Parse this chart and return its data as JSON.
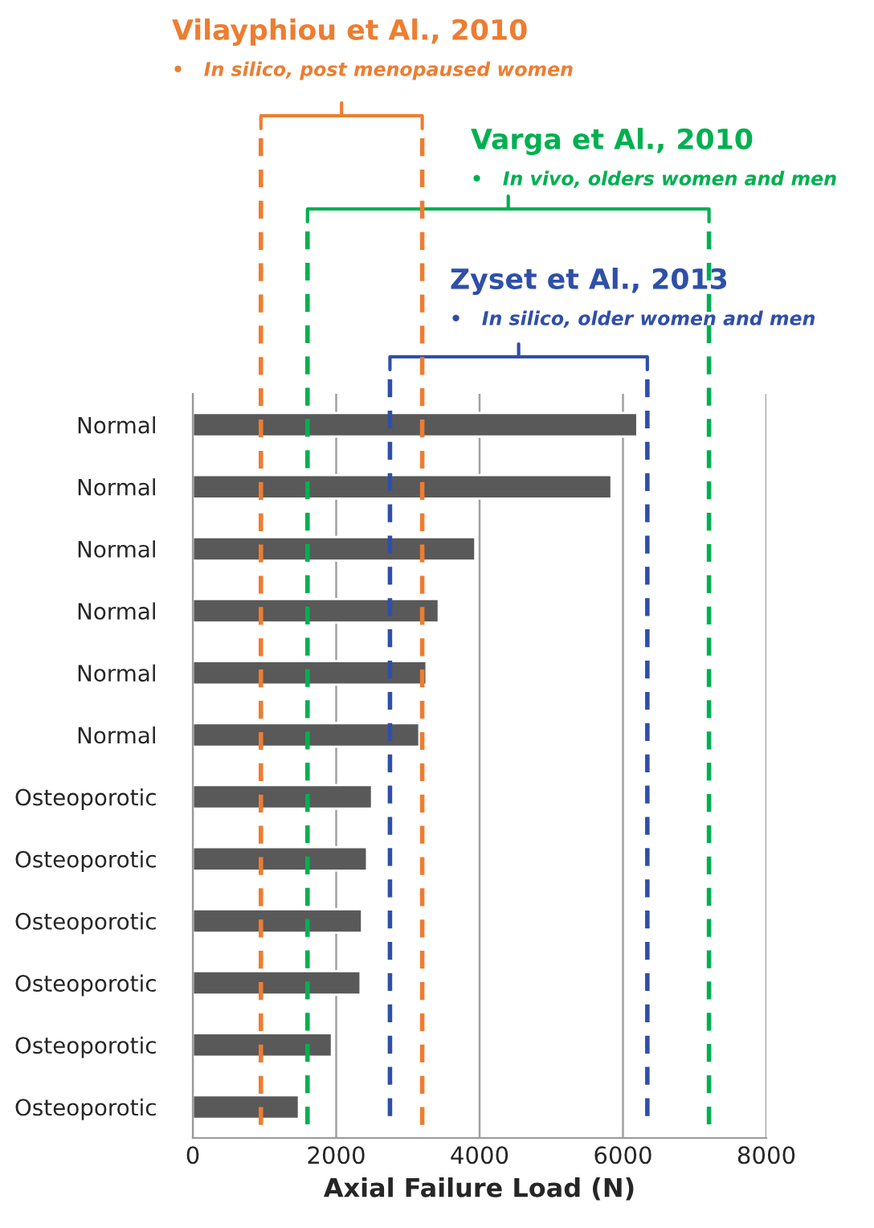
{
  "chart_data": {
    "type": "bar",
    "orientation": "horizontal",
    "xlabel": "Axial Failure Load (N)",
    "categories": [
      "Normal",
      "Normal",
      "Normal",
      "Normal",
      "Normal",
      "Normal",
      "Osteoporotic",
      "Osteoporotic",
      "Osteoporotic",
      "Osteoporotic",
      "Osteoporotic",
      "Osteoporotic"
    ],
    "values": [
      6200,
      5840,
      3940,
      3430,
      3260,
      3160,
      2500,
      2430,
      2360,
      2340,
      1940,
      1480
    ],
    "color": "#595959",
    "xlim": [
      0,
      8000
    ],
    "xticks": [
      0,
      2000,
      4000,
      6000,
      8000
    ],
    "grid": "x",
    "ref_lines": [
      {
        "axis": "x",
        "value": 950,
        "color": "#ed7d31",
        "line_style": "dashed"
      },
      {
        "axis": "x",
        "value": 3200,
        "color": "#ed7d31",
        "line_style": "dashed"
      },
      {
        "axis": "x",
        "value": 1600,
        "color": "#00b050",
        "line_style": "dashed"
      },
      {
        "axis": "x",
        "value": 7200,
        "color": "#00b050",
        "line_style": "dashed"
      },
      {
        "axis": "x",
        "value": 2750,
        "color": "#2f4fa8",
        "line_style": "dashed"
      },
      {
        "axis": "x",
        "value": 6340,
        "color": "#2f4fa8",
        "line_style": "dashed"
      }
    ],
    "annotations": [
      "Vilayphiou et Al., 2010",
      "•   In silico, post menopaused women",
      "Varga et Al., 2010",
      "•   In vivo, olders women and men",
      "Zyset et Al., 2013",
      "•   In silico, older women and men"
    ]
  }
}
